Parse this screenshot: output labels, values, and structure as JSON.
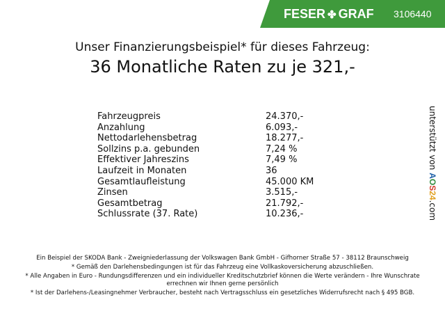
{
  "header": {
    "brand_left": "FESER",
    "brand_right": "GRAF",
    "dealer_id": "3106440",
    "brand_color": "#3f9a3c",
    "logo_icon": "clover-icon"
  },
  "title": {
    "line1": "Unser Finanzierungsbeispiel* für dieses Fahrzeug:",
    "line2": "36 Monatliche Raten zu je 321,-"
  },
  "table": [
    {
      "label": "Fahrzeugpreis",
      "value": "24.370,-"
    },
    {
      "label": "Anzahlung",
      "value": "6.093,-"
    },
    {
      "label": "Nettodarlehensbetrag",
      "value": "18.277,-"
    },
    {
      "label": "Sollzins p.a. gebunden",
      "value": "7,24 %"
    },
    {
      "label": "Effektiver Jahreszins",
      "value": "7,49 %"
    },
    {
      "label": "Laufzeit in Monaten",
      "value": "36"
    },
    {
      "label": "Gesamtlaufleistung",
      "value": "45.000 KM"
    },
    {
      "label": "Zinsen",
      "value": "3.515,-"
    },
    {
      "label": "Gesamtbetrag",
      "value": "21.792,-"
    },
    {
      "label": "Schlussrate (37. Rate)",
      "value": "10.236,-"
    }
  ],
  "side": {
    "prefix": "unterstützt von",
    "brand": "AOS24",
    "suffix": ".com"
  },
  "footer": [
    "Ein Beispiel der SKODA Bank - Zweigniederlassung der Volkswagen Bank GmbH - Gifhorner Straße 57 - 38112 Braunschweig",
    "* Gemäß den Darlehensbedingungen ist für das Fahrzeug eine Vollkaskoversicherung abzuschließen.",
    "* Alle Angaben in Euro - Rundungsdifferenzen und ein individueller Kreditschutzbrief können die Werte verändern - Ihre Wunschrate errechnen wir Ihnen gerne persönlich",
    "* Ist der Darlehens-/Leasingnehmer Verbraucher, besteht nach Vertragsschluss ein gesetzliches Widerrufsrecht nach § 495 BGB."
  ]
}
